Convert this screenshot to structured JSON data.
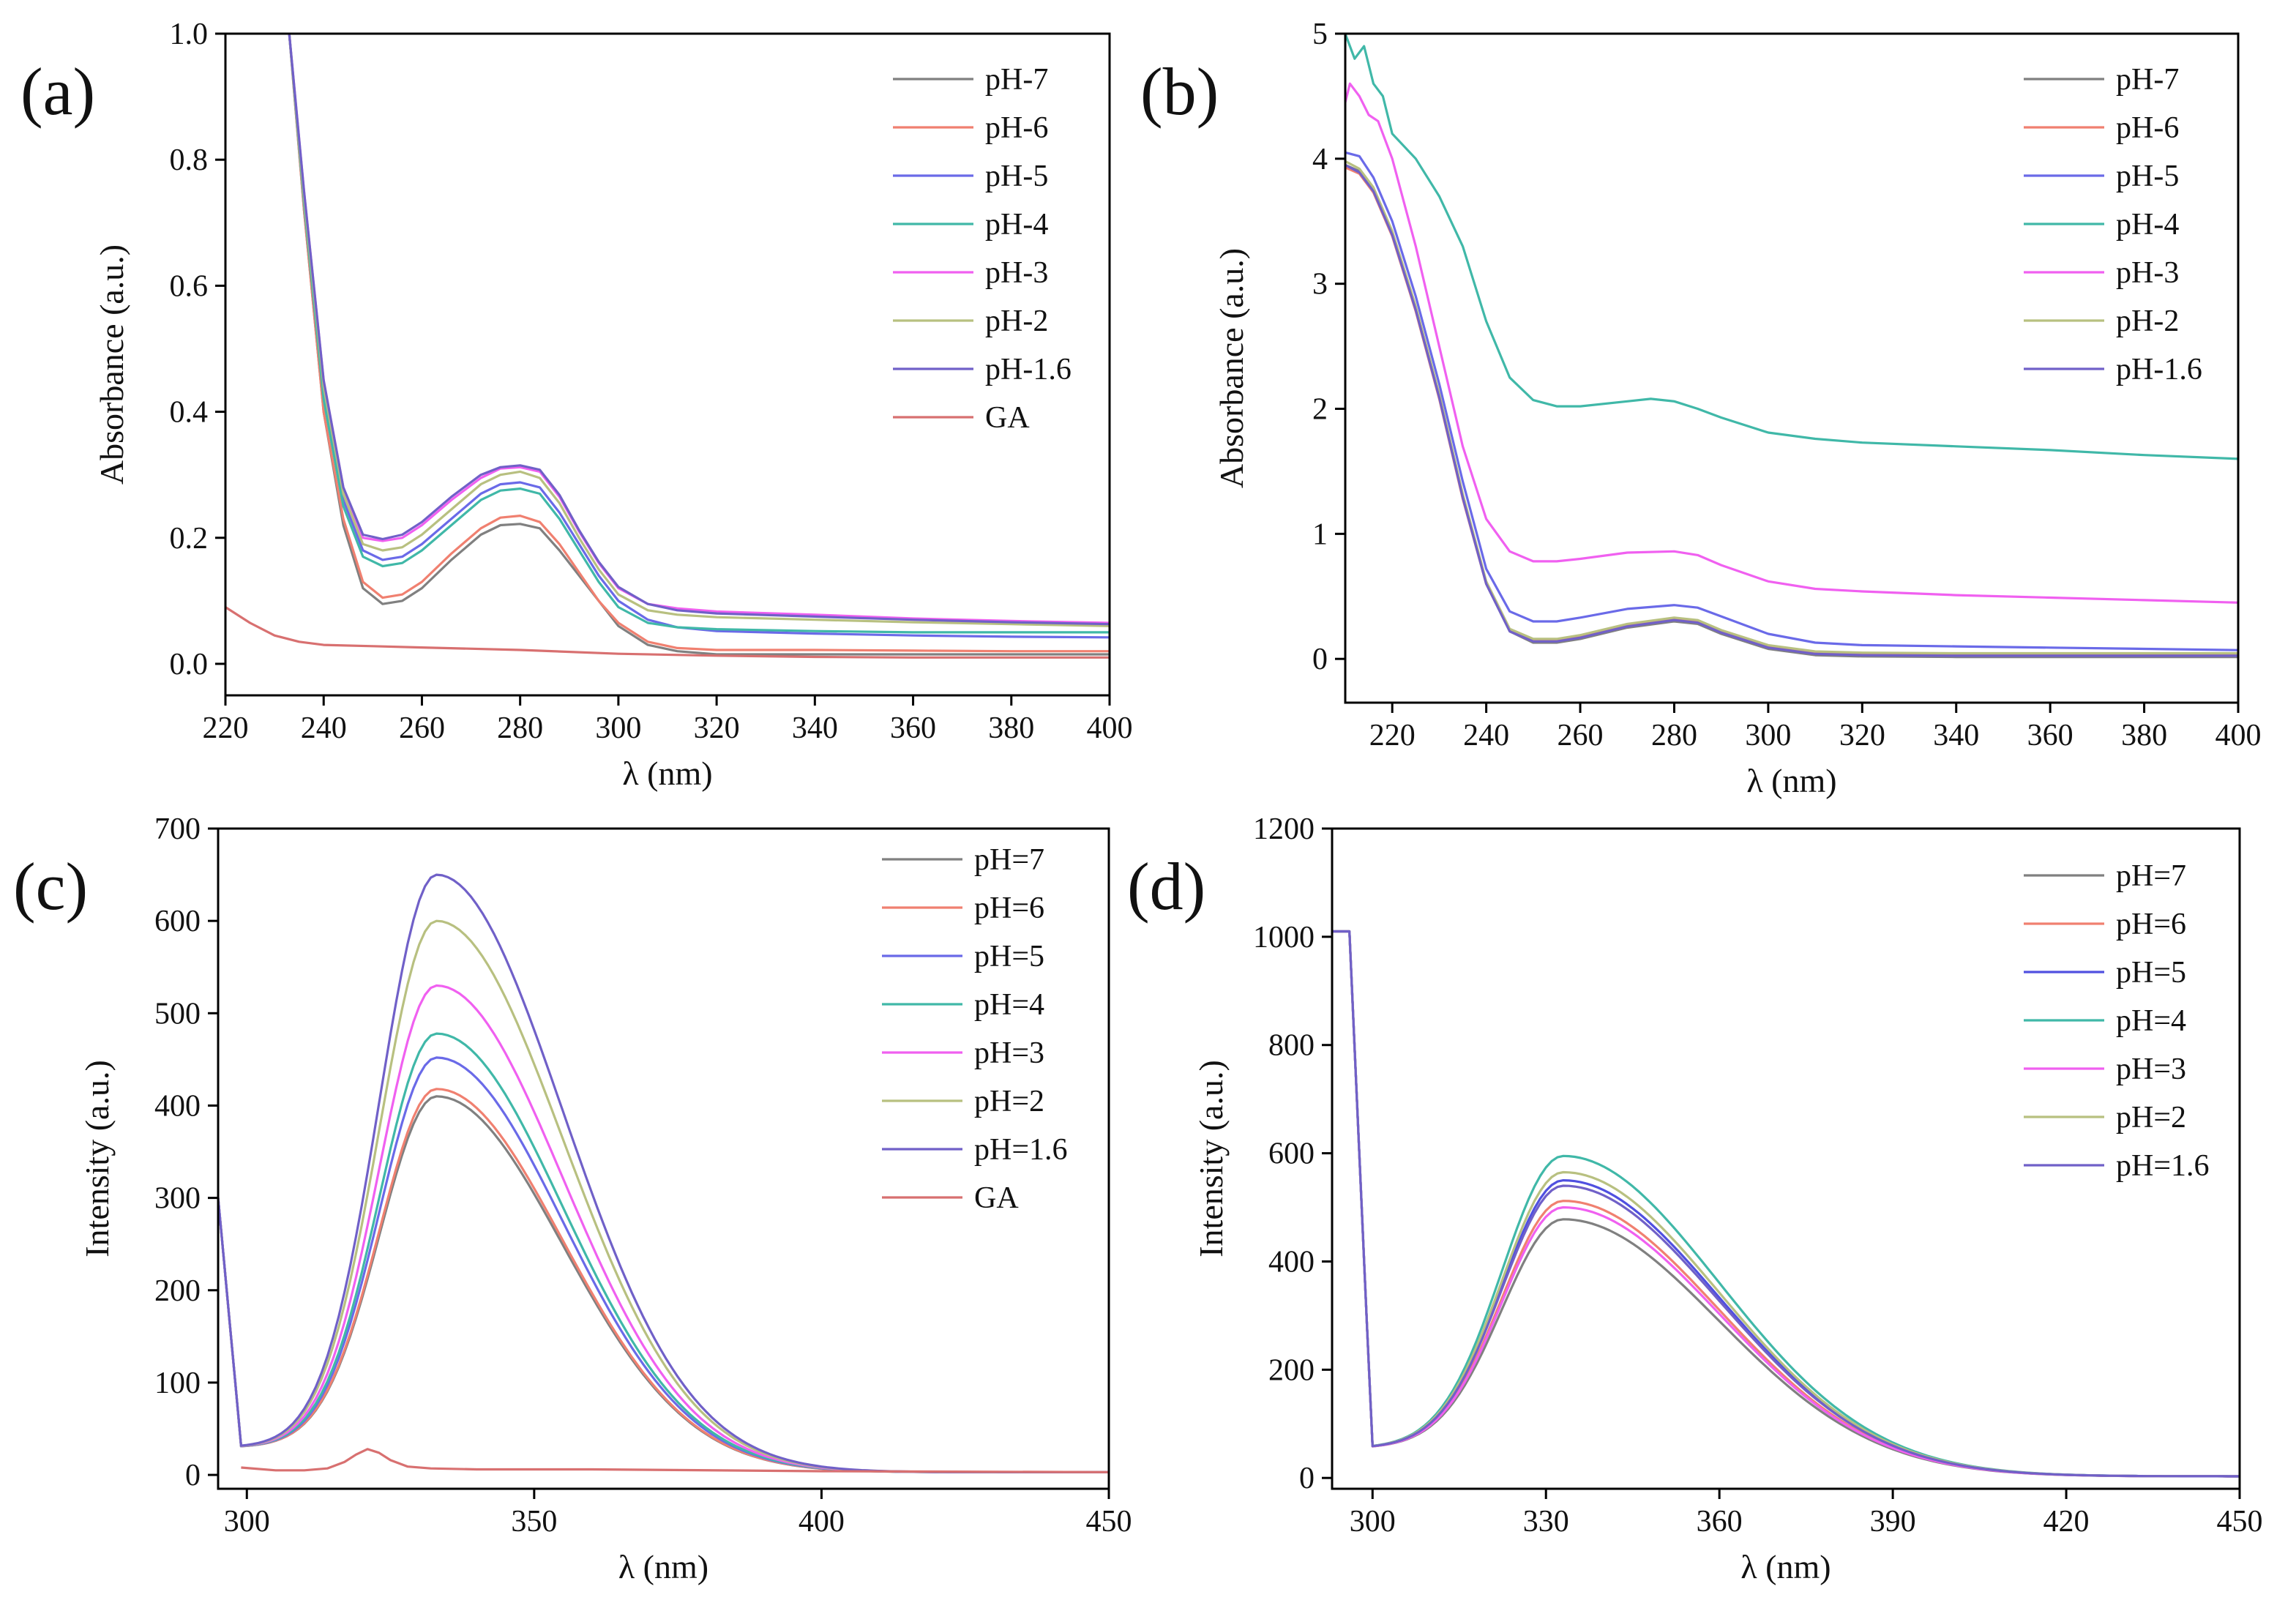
{
  "chart_data": [
    {
      "panel": "(a)",
      "type": "line",
      "xlabel": "λ (nm)",
      "ylabel": "Absorbance (a.u.)",
      "xlim": [
        220,
        400
      ],
      "ylim": [
        -0.05,
        1.0
      ],
      "xticks": [
        220,
        240,
        260,
        280,
        300,
        320,
        340,
        360,
        380,
        400
      ],
      "yticks": [
        0.0,
        0.2,
        0.4,
        0.6,
        0.8,
        1.0
      ],
      "xtick_labels": [
        "220",
        "240",
        "260",
        "280",
        "300",
        "320",
        "340",
        "360",
        "380",
        "400"
      ],
      "ytick_labels": [
        "0.0",
        "0.2",
        "0.4",
        "0.6",
        "0.8",
        "1.0"
      ],
      "legend_position": "top-right",
      "series": [
        {
          "name": "pH-7",
          "color": "#808080",
          "x": [
            233,
            236,
            240,
            244,
            248,
            252,
            256,
            260,
            266,
            272,
            276,
            280,
            284,
            288,
            292,
            296,
            300,
            306,
            312,
            320,
            340,
            360,
            380,
            400
          ],
          "y": [
            1.0,
            0.72,
            0.4,
            0.22,
            0.12,
            0.095,
            0.1,
            0.12,
            0.165,
            0.205,
            0.22,
            0.222,
            0.215,
            0.18,
            0.14,
            0.1,
            0.06,
            0.03,
            0.02,
            0.015,
            0.015,
            0.015,
            0.015,
            0.015
          ]
        },
        {
          "name": "pH-6",
          "color": "#f08070",
          "x": [
            233,
            236,
            240,
            244,
            248,
            252,
            256,
            260,
            266,
            272,
            276,
            280,
            284,
            288,
            292,
            296,
            300,
            306,
            312,
            320,
            340,
            360,
            380,
            400
          ],
          "y": [
            1.0,
            0.72,
            0.4,
            0.23,
            0.13,
            0.105,
            0.11,
            0.13,
            0.175,
            0.215,
            0.232,
            0.235,
            0.225,
            0.19,
            0.145,
            0.1,
            0.065,
            0.035,
            0.025,
            0.022,
            0.022,
            0.021,
            0.02,
            0.02
          ]
        },
        {
          "name": "pH-5",
          "color": "#6a6ae8",
          "x": [
            233,
            236,
            240,
            244,
            248,
            252,
            256,
            260,
            266,
            272,
            276,
            280,
            284,
            288,
            292,
            296,
            300,
            306,
            312,
            320,
            340,
            360,
            380,
            400
          ],
          "y": [
            1.0,
            0.74,
            0.43,
            0.26,
            0.18,
            0.165,
            0.17,
            0.19,
            0.23,
            0.27,
            0.285,
            0.288,
            0.28,
            0.24,
            0.19,
            0.14,
            0.1,
            0.07,
            0.058,
            0.052,
            0.048,
            0.045,
            0.043,
            0.042
          ]
        },
        {
          "name": "pH-4",
          "color": "#40b8a8",
          "x": [
            233,
            236,
            240,
            244,
            248,
            252,
            256,
            260,
            266,
            272,
            276,
            280,
            284,
            288,
            292,
            296,
            300,
            306,
            312,
            320,
            340,
            360,
            380,
            400
          ],
          "y": [
            1.0,
            0.73,
            0.42,
            0.25,
            0.17,
            0.155,
            0.16,
            0.18,
            0.22,
            0.26,
            0.275,
            0.278,
            0.27,
            0.23,
            0.18,
            0.13,
            0.09,
            0.065,
            0.058,
            0.055,
            0.052,
            0.05,
            0.05,
            0.05
          ]
        },
        {
          "name": "pH-3",
          "color": "#f060f0",
          "x": [
            233,
            236,
            240,
            244,
            248,
            252,
            256,
            260,
            266,
            272,
            276,
            280,
            284,
            288,
            292,
            296,
            300,
            306,
            312,
            320,
            340,
            360,
            380,
            400
          ],
          "y": [
            1.0,
            0.75,
            0.45,
            0.28,
            0.2,
            0.195,
            0.2,
            0.22,
            0.26,
            0.295,
            0.31,
            0.312,
            0.305,
            0.265,
            0.21,
            0.16,
            0.12,
            0.095,
            0.088,
            0.083,
            0.078,
            0.072,
            0.068,
            0.065
          ]
        },
        {
          "name": "pH-2",
          "color": "#b8c080",
          "x": [
            233,
            236,
            240,
            244,
            248,
            252,
            256,
            260,
            266,
            272,
            276,
            280,
            284,
            288,
            292,
            296,
            300,
            306,
            312,
            320,
            340,
            360,
            380,
            400
          ],
          "y": [
            1.0,
            0.74,
            0.44,
            0.27,
            0.19,
            0.18,
            0.185,
            0.205,
            0.245,
            0.285,
            0.3,
            0.305,
            0.295,
            0.255,
            0.2,
            0.15,
            0.11,
            0.085,
            0.078,
            0.074,
            0.07,
            0.066,
            0.063,
            0.06
          ]
        },
        {
          "name": "pH-1.6",
          "color": "#7060c8",
          "x": [
            233,
            236,
            240,
            244,
            248,
            252,
            256,
            260,
            266,
            272,
            276,
            280,
            284,
            288,
            292,
            296,
            300,
            306,
            312,
            320,
            340,
            360,
            380,
            400
          ],
          "y": [
            1.0,
            0.75,
            0.45,
            0.28,
            0.205,
            0.198,
            0.205,
            0.225,
            0.265,
            0.3,
            0.312,
            0.315,
            0.308,
            0.268,
            0.212,
            0.162,
            0.122,
            0.095,
            0.085,
            0.08,
            0.075,
            0.07,
            0.066,
            0.063
          ]
        },
        {
          "name": "GA",
          "color": "#d87070",
          "x": [
            220,
            225,
            230,
            235,
            240,
            250,
            260,
            280,
            300,
            320,
            340,
            360,
            380,
            400
          ],
          "y": [
            0.09,
            0.065,
            0.045,
            0.035,
            0.03,
            0.028,
            0.026,
            0.022,
            0.016,
            0.013,
            0.011,
            0.01,
            0.01,
            0.01
          ]
        }
      ]
    },
    {
      "panel": "(b)",
      "type": "line",
      "xlabel": "λ (nm)",
      "ylabel": "Absorbance (a.u.)",
      "xlim": [
        210,
        400
      ],
      "ylim": [
        -0.35,
        5.0
      ],
      "xticks": [
        220,
        240,
        260,
        280,
        300,
        320,
        340,
        360,
        380,
        400
      ],
      "yticks": [
        0,
        1,
        2,
        3,
        4,
        5
      ],
      "xtick_labels": [
        "220",
        "240",
        "260",
        "280",
        "300",
        "320",
        "340",
        "360",
        "380",
        "400"
      ],
      "ytick_labels": [
        "0",
        "1",
        "2",
        "3",
        "4",
        "5"
      ],
      "legend_position": "top-right",
      "series": [
        {
          "name": "pH-7",
          "color": "#808080",
          "x": [
            210,
            213,
            216,
            220,
            225,
            230,
            235,
            240,
            245,
            250,
            255,
            260,
            270,
            280,
            285,
            290,
            300,
            310,
            320,
            340,
            360,
            380,
            400
          ],
          "y": [
            3.95,
            3.9,
            3.75,
            3.4,
            2.8,
            2.1,
            1.3,
            0.6,
            0.22,
            0.13,
            0.13,
            0.16,
            0.25,
            0.3,
            0.28,
            0.2,
            0.08,
            0.03,
            0.02,
            0.015,
            0.015,
            0.015,
            0.015
          ]
        },
        {
          "name": "pH-6",
          "color": "#f08070",
          "x": [
            210,
            213,
            216,
            220,
            225,
            230,
            235,
            240,
            245,
            250,
            255,
            260,
            270,
            280,
            285,
            290,
            300,
            310,
            320,
            340,
            360,
            380,
            400
          ],
          "y": [
            3.93,
            3.88,
            3.73,
            3.38,
            2.78,
            2.08,
            1.28,
            0.6,
            0.23,
            0.15,
            0.15,
            0.18,
            0.27,
            0.32,
            0.3,
            0.22,
            0.1,
            0.05,
            0.04,
            0.035,
            0.03,
            0.03,
            0.03
          ]
        },
        {
          "name": "pH-5",
          "color": "#6a6ae8",
          "x": [
            210,
            213,
            216,
            220,
            225,
            230,
            235,
            240,
            245,
            250,
            255,
            260,
            270,
            280,
            285,
            290,
            300,
            310,
            320,
            340,
            360,
            380,
            400
          ],
          "y": [
            4.05,
            4.02,
            3.85,
            3.5,
            2.9,
            2.2,
            1.42,
            0.72,
            0.38,
            0.3,
            0.3,
            0.33,
            0.4,
            0.43,
            0.41,
            0.34,
            0.2,
            0.13,
            0.11,
            0.1,
            0.09,
            0.08,
            0.07
          ]
        },
        {
          "name": "pH-4",
          "color": "#40b8a8",
          "x": [
            210,
            212,
            214,
            216,
            218,
            220,
            225,
            230,
            235,
            240,
            245,
            250,
            255,
            260,
            270,
            275,
            280,
            285,
            290,
            300,
            310,
            320,
            340,
            360,
            380,
            400
          ],
          "y": [
            5.0,
            4.8,
            4.9,
            4.6,
            4.5,
            4.2,
            4.0,
            3.7,
            3.3,
            2.7,
            2.25,
            2.07,
            2.02,
            2.02,
            2.06,
            2.08,
            2.06,
            2.0,
            1.93,
            1.81,
            1.76,
            1.73,
            1.7,
            1.67,
            1.63,
            1.6
          ]
        },
        {
          "name": "pH-3",
          "color": "#f060f0",
          "x": [
            210,
            211,
            213,
            215,
            217,
            220,
            225,
            230,
            235,
            240,
            245,
            250,
            255,
            260,
            270,
            280,
            285,
            290,
            300,
            310,
            320,
            340,
            360,
            380,
            400
          ],
          "y": [
            4.45,
            4.6,
            4.5,
            4.35,
            4.3,
            4.0,
            3.3,
            2.5,
            1.7,
            1.12,
            0.86,
            0.78,
            0.78,
            0.8,
            0.85,
            0.86,
            0.83,
            0.75,
            0.62,
            0.56,
            0.54,
            0.51,
            0.49,
            0.47,
            0.45
          ]
        },
        {
          "name": "pH-2",
          "color": "#b8c080",
          "x": [
            210,
            213,
            216,
            220,
            225,
            230,
            235,
            240,
            245,
            250,
            255,
            260,
            270,
            280,
            285,
            290,
            300,
            310,
            320,
            340,
            360,
            380,
            400
          ],
          "y": [
            3.98,
            3.92,
            3.77,
            3.42,
            2.82,
            2.12,
            1.32,
            0.62,
            0.24,
            0.16,
            0.16,
            0.19,
            0.28,
            0.33,
            0.31,
            0.23,
            0.11,
            0.06,
            0.05,
            0.045,
            0.045,
            0.045,
            0.045
          ]
        },
        {
          "name": "pH-1.6",
          "color": "#7060c8",
          "x": [
            210,
            213,
            216,
            220,
            225,
            230,
            235,
            240,
            245,
            250,
            255,
            260,
            270,
            280,
            285,
            290,
            300,
            310,
            320,
            340,
            360,
            380,
            400
          ],
          "y": [
            3.95,
            3.89,
            3.74,
            3.39,
            2.79,
            2.09,
            1.29,
            0.6,
            0.22,
            0.14,
            0.14,
            0.17,
            0.26,
            0.31,
            0.29,
            0.21,
            0.09,
            0.04,
            0.03,
            0.025,
            0.025,
            0.025,
            0.025
          ]
        }
      ]
    },
    {
      "panel": "(c)",
      "type": "line",
      "xlabel": "λ (nm)",
      "ylabel": "Intensity (a.u.)",
      "xlim": [
        295,
        450
      ],
      "ylim": [
        -15,
        700
      ],
      "xticks": [
        300,
        350,
        400,
        450
      ],
      "yticks": [
        0,
        100,
        200,
        300,
        400,
        500,
        600,
        700
      ],
      "xtick_labels": [
        "300",
        "350",
        "400",
        "450"
      ],
      "ytick_labels": [
        "0",
        "100",
        "200",
        "300",
        "400",
        "500",
        "600",
        "700"
      ],
      "legend_position": "top-right",
      "series": [
        {
          "name": "pH=7",
          "color": "#808080",
          "peak": 410
        },
        {
          "name": "pH=6",
          "color": "#f08070",
          "peak": 418
        },
        {
          "name": "pH=5",
          "color": "#6a6ae8",
          "peak": 452
        },
        {
          "name": "pH=4",
          "color": "#40b8a8",
          "peak": 478
        },
        {
          "name": "pH=3",
          "color": "#f060f0",
          "peak": 530
        },
        {
          "name": "pH=2",
          "color": "#b8c080",
          "peak": 600
        },
        {
          "name": "pH=1.6",
          "color": "#7060c8",
          "peak": 650
        },
        {
          "name": "GA",
          "color": "#d87070",
          "x": [
            299,
            305,
            310,
            314,
            317,
            319,
            321,
            323,
            325,
            328,
            332,
            340,
            360,
            400,
            450
          ],
          "y": [
            8,
            5,
            5,
            7,
            14,
            22,
            28,
            24,
            16,
            9,
            7,
            6,
            6,
            4,
            3
          ]
        }
      ]
    },
    {
      "panel": "(d)",
      "type": "line",
      "xlabel": "λ (nm)",
      "ylabel": "Intensity (a.u.)",
      "xlim": [
        293,
        450
      ],
      "ylim": [
        -20,
        1200
      ],
      "xticks": [
        300,
        330,
        360,
        390,
        420,
        450
      ],
      "yticks": [
        0,
        200,
        400,
        600,
        800,
        1000,
        1200
      ],
      "xtick_labels": [
        "300",
        "330",
        "360",
        "390",
        "420",
        "450"
      ],
      "ytick_labels": [
        "0",
        "200",
        "400",
        "600",
        "800",
        "1000",
        "1200"
      ],
      "legend_position": "top-right",
      "series": [
        {
          "name": "pH=7",
          "color": "#808080",
          "peak": 478
        },
        {
          "name": "pH=6",
          "color": "#f08070",
          "peak": 512
        },
        {
          "name": "pH=5",
          "color": "#5050e0",
          "peak": 550
        },
        {
          "name": "pH=4",
          "color": "#40b8a8",
          "peak": 595
        },
        {
          "name": "pH=3",
          "color": "#f060f0",
          "peak": 500
        },
        {
          "name": "pH=2",
          "color": "#b8c080",
          "peak": 565
        },
        {
          "name": "pH=1.6",
          "color": "#7060c8",
          "peak": 540
        }
      ]
    }
  ]
}
